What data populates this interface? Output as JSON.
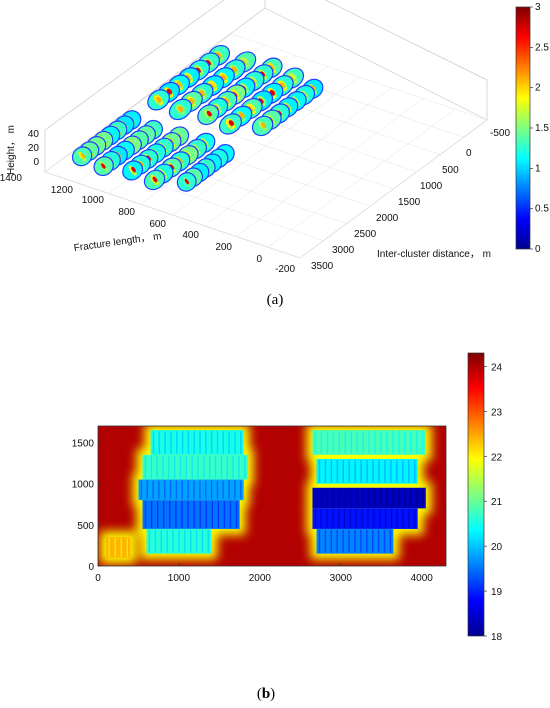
{
  "chart_data": [
    {
      "type": "surface3d",
      "panel_label": "(a)",
      "xlabel": "Inter-cluster distance， m",
      "ylabel": "Fracture length， m",
      "zlabel": "Height， m",
      "x_ticks": [
        "-500",
        "0",
        "500",
        "1000",
        "1500",
        "2000",
        "2500",
        "3000",
        "3500"
      ],
      "y_ticks": [
        "1400",
        "1200",
        "1000",
        "800",
        "600",
        "400",
        "200",
        "0",
        "-200"
      ],
      "z_ticks": [
        "40",
        "20",
        "0"
      ],
      "colorbar": {
        "ticks": [
          "3",
          "2.5",
          "2",
          "1.5",
          "1",
          "0.5",
          "0"
        ],
        "range": [
          0,
          3
        ],
        "colormap": "jet"
      },
      "fracture_groups": 2,
      "grid": true
    },
    {
      "type": "heatmap",
      "panel_label": "(b)",
      "x_ticks": [
        "0",
        "1000",
        "2000",
        "3000",
        "4000"
      ],
      "y_ticks": [
        "1500",
        "1000",
        "500",
        "0"
      ],
      "xlim": [
        0,
        4300
      ],
      "ylim": [
        0,
        1700
      ],
      "colorbar": {
        "ticks": [
          "24",
          "23",
          "22",
          "21",
          "20",
          "19",
          "18"
        ],
        "range": [
          18,
          24.3
        ],
        "colormap": "jet"
      },
      "background_value": 24.3,
      "regions": [
        {
          "x": [
            650,
            1800
          ],
          "y": [
            1350,
            1650
          ],
          "value": 20.5
        },
        {
          "x": [
            550,
            1850
          ],
          "y": [
            1050,
            1350
          ],
          "value": 20.7
        },
        {
          "x": [
            500,
            1800
          ],
          "y": [
            800,
            1050
          ],
          "value": 19.8
        },
        {
          "x": [
            550,
            1750
          ],
          "y": [
            450,
            800
          ],
          "value": 19.5
        },
        {
          "x": [
            600,
            1400
          ],
          "y": [
            150,
            450
          ],
          "value": 20.6
        },
        {
          "x": [
            100,
            400
          ],
          "y": [
            100,
            350
          ],
          "value": 22.4
        },
        {
          "x": [
            2650,
            4050
          ],
          "y": [
            1350,
            1650
          ],
          "value": 20.8
        },
        {
          "x": [
            2700,
            3950
          ],
          "y": [
            1000,
            1300
          ],
          "value": 20.3
        },
        {
          "x": [
            2650,
            4050
          ],
          "y": [
            700,
            950
          ],
          "value": 18.4
        },
        {
          "x": [
            2650,
            3950
          ],
          "y": [
            450,
            700
          ],
          "value": 18.9
        },
        {
          "x": [
            2700,
            3650
          ],
          "y": [
            150,
            450
          ],
          "value": 19.6
        }
      ]
    }
  ],
  "captions": {
    "a_open": "(",
    "a_letter": "a",
    "a_close": ")",
    "b_open": "(",
    "b_letter": "b",
    "b_close": ")"
  }
}
